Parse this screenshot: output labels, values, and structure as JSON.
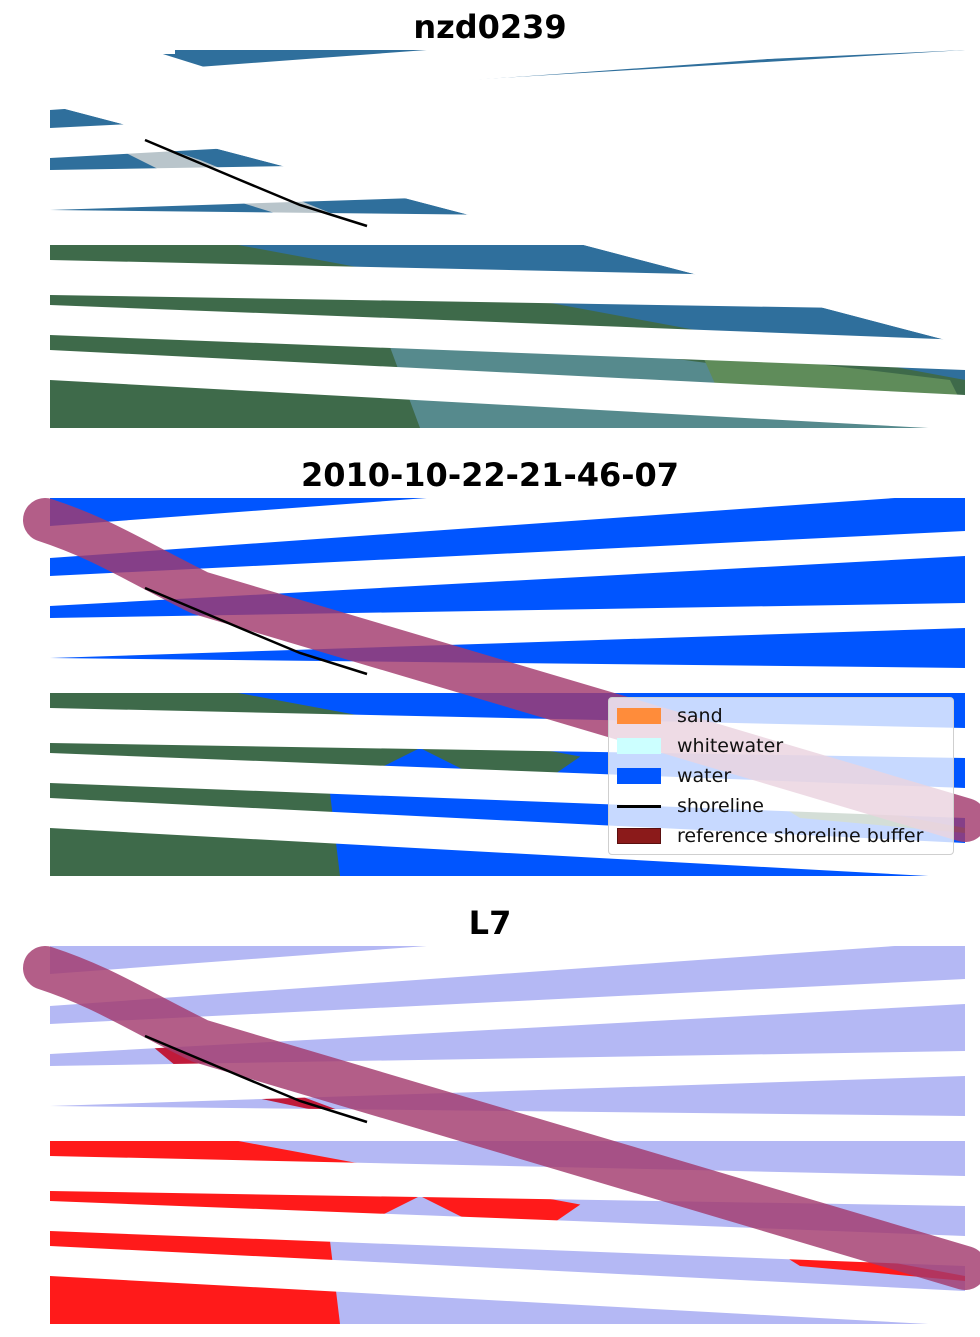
{
  "panels": {
    "image_title": "nzd0239",
    "classified_title": "2010-10-22-21-46-07",
    "mndwi_title": "L7"
  },
  "legend": {
    "items": [
      {
        "label": "sand",
        "color": "#ff8c3a"
      },
      {
        "label": "whitewater",
        "color": "#ccffff"
      },
      {
        "label": "water",
        "color": "#0055ff"
      },
      {
        "label": "shoreline",
        "color": "#000000"
      },
      {
        "label": "reference shoreline buffer",
        "color": "#8b1a1a"
      }
    ]
  },
  "colors": {
    "ocean": "#2f6f9c",
    "land_green": "#3e6a4a",
    "water_class": "#0055ff",
    "buffer": "#a23a6e",
    "land_red": "#ff1a1a",
    "water_lilac": "#b4b8f4"
  }
}
